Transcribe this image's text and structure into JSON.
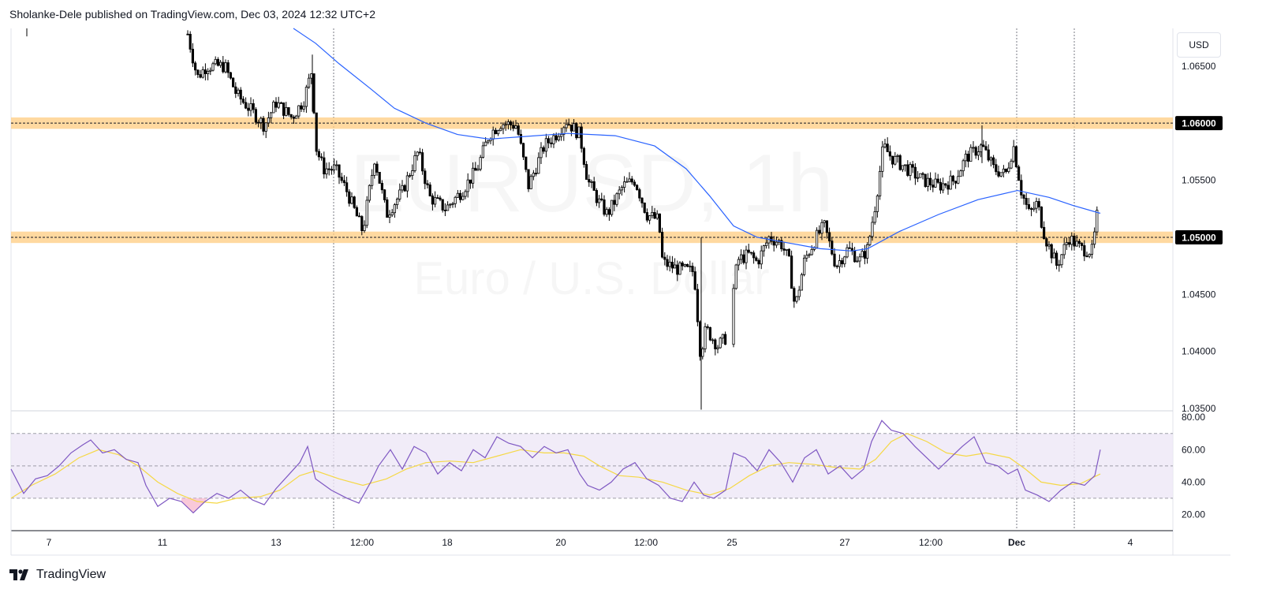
{
  "header": {
    "text": "Sholanke-Dele published on TradingView.com, Dec 03, 2024 12:32 UTC+2"
  },
  "footer": {
    "brand": "TradingView"
  },
  "currency_button": "USD",
  "watermark": {
    "symbol": "EURUSD, 1h",
    "name": "Euro / U.S. Dollar"
  },
  "colors": {
    "candle": "#000000",
    "ma": "#2962ff",
    "zone": "#ffcc80",
    "rsi": "#7e57c2",
    "rsi_ma": "#f5d845",
    "rsi_band": "#ede7f6",
    "oversold": "#f8bbd0"
  },
  "chart_data": [
    {
      "type": "candlestick",
      "symbol": "EURUSD",
      "timeframe": "1h",
      "price_axis": {
        "label": "USD",
        "ticks": [
          "1.06500",
          "1.05500",
          "1.04500",
          "1.04000",
          "1.03500"
        ],
        "ylim": [
          1.0348,
          1.0683
        ]
      },
      "time_axis": {
        "ticks": [
          "7",
          "11",
          "13",
          "12:00",
          "18",
          "20",
          "12:00",
          "25",
          "27",
          "12:00",
          "Dec",
          "4"
        ]
      },
      "horizontal_levels": [
        {
          "price": 1.06,
          "label": "1.06000",
          "zone": [
            1.0595,
            1.0605
          ]
        },
        {
          "price": 1.05,
          "label": "1.05000",
          "zone": [
            1.0495,
            1.0505
          ]
        }
      ],
      "moving_average_points": [
        [
          372,
          1.0683
        ],
        [
          400,
          1.067
        ],
        [
          430,
          1.0652
        ],
        [
          470,
          1.063
        ],
        [
          500,
          1.0613
        ],
        [
          540,
          1.06
        ],
        [
          580,
          1.059
        ],
        [
          620,
          1.0586
        ],
        [
          660,
          1.0588
        ],
        [
          720,
          1.0591
        ],
        [
          780,
          1.0589
        ],
        [
          830,
          1.058
        ],
        [
          870,
          1.056
        ],
        [
          900,
          1.0536
        ],
        [
          930,
          1.051
        ],
        [
          960,
          1.05
        ],
        [
          1000,
          1.0495
        ],
        [
          1040,
          1.049
        ],
        [
          1080,
          1.0488
        ],
        [
          1100,
          1.049
        ],
        [
          1140,
          1.0505
        ],
        [
          1190,
          1.052
        ],
        [
          1240,
          1.0533
        ],
        [
          1290,
          1.0541
        ],
        [
          1330,
          1.0535
        ],
        [
          1360,
          1.0528
        ],
        [
          1395,
          1.0521
        ]
      ],
      "price_path": [
        [
          238,
          1.0678
        ],
        [
          250,
          1.064
        ],
        [
          262,
          1.065
        ],
        [
          285,
          1.065
        ],
        [
          300,
          1.0625
        ],
        [
          320,
          1.061
        ],
        [
          335,
          1.0598
        ],
        [
          350,
          1.0618
        ],
        [
          370,
          1.0605
        ],
        [
          385,
          1.062
        ],
        [
          396,
          1.0648
        ],
        [
          400,
          1.058
        ],
        [
          410,
          1.056
        ],
        [
          425,
          1.056
        ],
        [
          440,
          1.054
        ],
        [
          460,
          1.0505
        ],
        [
          475,
          1.057
        ],
        [
          490,
          1.052
        ],
        [
          510,
          1.054
        ],
        [
          530,
          1.0575
        ],
        [
          545,
          1.0535
        ],
        [
          565,
          1.0525
        ],
        [
          585,
          1.054
        ],
        [
          605,
          1.056
        ],
        [
          620,
          1.059
        ],
        [
          635,
          1.06
        ],
        [
          655,
          1.0598
        ],
        [
          670,
          1.0545
        ],
        [
          690,
          1.058
        ],
        [
          705,
          1.059
        ],
        [
          718,
          1.0602
        ],
        [
          735,
          1.059
        ],
        [
          745,
          1.055
        ],
        [
          760,
          1.053
        ],
        [
          770,
          1.052
        ],
        [
          790,
          1.0545
        ],
        [
          805,
          1.055
        ],
        [
          820,
          1.052
        ],
        [
          835,
          1.0515
        ],
        [
          840,
          1.0478
        ],
        [
          860,
          1.0472
        ],
        [
          880,
          1.047
        ],
        [
          888,
          1.0398
        ],
        [
          895,
          1.042
        ],
        [
          910,
          1.0405
        ],
        [
          922,
          1.0413
        ],
        [
          935,
          1.048
        ],
        [
          950,
          1.0485
        ],
        [
          960,
          1.0478
        ],
        [
          975,
          1.05
        ],
        [
          990,
          1.0495
        ],
        [
          1000,
          1.048
        ],
        [
          1008,
          1.0438
        ],
        [
          1020,
          1.048
        ],
        [
          1035,
          1.05
        ],
        [
          1045,
          1.051
        ],
        [
          1060,
          1.0475
        ],
        [
          1075,
          1.049
        ],
        [
          1090,
          1.048
        ],
        [
          1100,
          1.049
        ],
        [
          1110,
          1.053
        ],
        [
          1120,
          1.058
        ],
        [
          1130,
          1.057
        ],
        [
          1150,
          1.056
        ],
        [
          1170,
          1.055
        ],
        [
          1190,
          1.0545
        ],
        [
          1210,
          1.055
        ],
        [
          1225,
          1.057
        ],
        [
          1245,
          1.058
        ],
        [
          1260,
          1.056
        ],
        [
          1275,
          1.0555
        ],
        [
          1285,
          1.058
        ],
        [
          1295,
          1.054
        ],
        [
          1305,
          1.052
        ],
        [
          1315,
          1.053
        ],
        [
          1325,
          1.05
        ],
        [
          1340,
          1.0475
        ],
        [
          1355,
          1.05
        ],
        [
          1370,
          1.049
        ],
        [
          1385,
          1.0488
        ],
        [
          1392,
          1.0525
        ]
      ]
    },
    {
      "type": "line",
      "indicator": "RSI",
      "y_ticks": [
        "80.00",
        "60.00",
        "40.00",
        "20.00"
      ],
      "ylim": [
        10,
        84
      ],
      "levels": [
        70,
        50,
        30
      ],
      "rsi_points": [
        [
          14,
          48
        ],
        [
          30,
          33
        ],
        [
          45,
          42
        ],
        [
          60,
          44
        ],
        [
          75,
          50
        ],
        [
          90,
          58
        ],
        [
          105,
          63
        ],
        [
          115,
          66
        ],
        [
          130,
          58
        ],
        [
          145,
          60
        ],
        [
          160,
          54
        ],
        [
          175,
          52
        ],
        [
          185,
          38
        ],
        [
          200,
          25
        ],
        [
          215,
          30
        ],
        [
          230,
          28
        ],
        [
          245,
          21
        ],
        [
          260,
          28
        ],
        [
          275,
          33
        ],
        [
          290,
          30
        ],
        [
          305,
          35
        ],
        [
          320,
          29
        ],
        [
          335,
          26
        ],
        [
          350,
          36
        ],
        [
          365,
          44
        ],
        [
          380,
          52
        ],
        [
          390,
          62
        ],
        [
          400,
          42
        ],
        [
          420,
          35
        ],
        [
          440,
          30
        ],
        [
          455,
          27
        ],
        [
          470,
          40
        ],
        [
          480,
          50
        ],
        [
          495,
          60
        ],
        [
          510,
          48
        ],
        [
          525,
          62
        ],
        [
          540,
          58
        ],
        [
          555,
          45
        ],
        [
          570,
          52
        ],
        [
          585,
          47
        ],
        [
          600,
          60
        ],
        [
          615,
          55
        ],
        [
          630,
          68
        ],
        [
          645,
          64
        ],
        [
          660,
          62
        ],
        [
          675,
          55
        ],
        [
          690,
          62
        ],
        [
          705,
          58
        ],
        [
          720,
          60
        ],
        [
          735,
          45
        ],
        [
          745,
          38
        ],
        [
          760,
          35
        ],
        [
          775,
          40
        ],
        [
          790,
          48
        ],
        [
          805,
          52
        ],
        [
          820,
          42
        ],
        [
          835,
          38
        ],
        [
          850,
          30
        ],
        [
          865,
          28
        ],
        [
          880,
          40
        ],
        [
          892,
          32
        ],
        [
          905,
          30
        ],
        [
          920,
          35
        ],
        [
          930,
          58
        ],
        [
          945,
          55
        ],
        [
          960,
          47
        ],
        [
          975,
          60
        ],
        [
          990,
          52
        ],
        [
          1005,
          40
        ],
        [
          1020,
          55
        ],
        [
          1035,
          60
        ],
        [
          1050,
          45
        ],
        [
          1065,
          50
        ],
        [
          1080,
          42
        ],
        [
          1095,
          48
        ],
        [
          1105,
          65
        ],
        [
          1118,
          78
        ],
        [
          1130,
          72
        ],
        [
          1145,
          70
        ],
        [
          1160,
          62
        ],
        [
          1175,
          55
        ],
        [
          1190,
          48
        ],
        [
          1205,
          55
        ],
        [
          1220,
          62
        ],
        [
          1235,
          68
        ],
        [
          1250,
          52
        ],
        [
          1265,
          50
        ],
        [
          1278,
          45
        ],
        [
          1290,
          48
        ],
        [
          1300,
          35
        ],
        [
          1315,
          32
        ],
        [
          1330,
          28
        ],
        [
          1345,
          35
        ],
        [
          1360,
          40
        ],
        [
          1375,
          38
        ],
        [
          1388,
          44
        ],
        [
          1395,
          60
        ]
      ],
      "rsi_ma_points": [
        [
          14,
          30
        ],
        [
          40,
          38
        ],
        [
          70,
          45
        ],
        [
          100,
          55
        ],
        [
          125,
          60
        ],
        [
          150,
          57
        ],
        [
          175,
          50
        ],
        [
          200,
          40
        ],
        [
          225,
          33
        ],
        [
          250,
          28
        ],
        [
          275,
          27
        ],
        [
          300,
          30
        ],
        [
          330,
          31
        ],
        [
          355,
          35
        ],
        [
          380,
          44
        ],
        [
          400,
          47
        ],
        [
          430,
          42
        ],
        [
          460,
          38
        ],
        [
          490,
          42
        ],
        [
          515,
          48
        ],
        [
          540,
          52
        ],
        [
          570,
          53
        ],
        [
          600,
          52
        ],
        [
          630,
          56
        ],
        [
          660,
          60
        ],
        [
          690,
          58
        ],
        [
          715,
          58
        ],
        [
          740,
          56
        ],
        [
          760,
          50
        ],
        [
          785,
          44
        ],
        [
          810,
          43
        ],
        [
          840,
          40
        ],
        [
          870,
          35
        ],
        [
          900,
          32
        ],
        [
          925,
          36
        ],
        [
          950,
          44
        ],
        [
          975,
          50
        ],
        [
          1000,
          52
        ],
        [
          1030,
          51
        ],
        [
          1060,
          49
        ],
        [
          1090,
          48
        ],
        [
          1110,
          54
        ],
        [
          1130,
          65
        ],
        [
          1150,
          70
        ],
        [
          1175,
          65
        ],
        [
          1200,
          58
        ],
        [
          1225,
          56
        ],
        [
          1250,
          58
        ],
        [
          1280,
          55
        ],
        [
          1300,
          48
        ],
        [
          1320,
          40
        ],
        [
          1345,
          38
        ],
        [
          1370,
          39
        ],
        [
          1395,
          45
        ]
      ]
    }
  ]
}
